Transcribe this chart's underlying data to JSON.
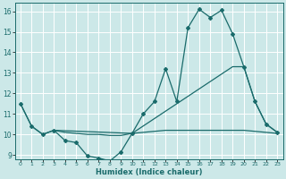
{
  "xlabel": "Humidex (Indice chaleur)",
  "bg_color": "#cce8e8",
  "line_color": "#1a6b6b",
  "xlim": [
    -0.5,
    23.5
  ],
  "ylim": [
    8.8,
    16.4
  ],
  "xticks": [
    0,
    1,
    2,
    3,
    4,
    5,
    6,
    7,
    8,
    9,
    10,
    11,
    12,
    13,
    14,
    15,
    16,
    17,
    18,
    19,
    20,
    21,
    22,
    23
  ],
  "yticks": [
    9,
    10,
    11,
    12,
    13,
    14,
    15,
    16
  ],
  "line1_x": [
    0,
    1,
    2,
    3,
    4,
    5,
    6,
    7,
    8,
    9,
    10,
    11,
    12,
    13,
    14,
    15,
    16,
    17,
    18,
    19,
    20,
    21,
    22,
    23
  ],
  "line1_y": [
    11.5,
    10.4,
    10.0,
    10.2,
    9.7,
    9.6,
    8.95,
    8.85,
    8.7,
    9.15,
    10.05,
    11.0,
    11.6,
    13.2,
    11.6,
    15.2,
    16.1,
    15.7,
    16.05,
    14.9,
    13.3,
    11.6,
    10.5,
    10.1
  ],
  "line2_x": [
    0,
    1,
    2,
    3,
    10,
    19,
    20,
    21,
    22,
    23
  ],
  "line2_y": [
    11.5,
    10.4,
    10.0,
    10.2,
    10.05,
    13.3,
    13.3,
    11.6,
    10.5,
    10.1
  ],
  "line3_x": [
    3,
    4,
    5,
    6,
    7,
    8,
    9,
    10,
    11,
    12,
    13,
    14,
    15,
    16,
    17,
    18,
    19,
    20,
    21,
    22,
    23
  ],
  "line3_y": [
    10.2,
    10.1,
    10.05,
    10.0,
    10.0,
    9.95,
    9.95,
    10.05,
    10.1,
    10.15,
    10.2,
    10.2,
    10.2,
    10.2,
    10.2,
    10.2,
    10.2,
    10.2,
    10.15,
    10.1,
    10.05
  ]
}
